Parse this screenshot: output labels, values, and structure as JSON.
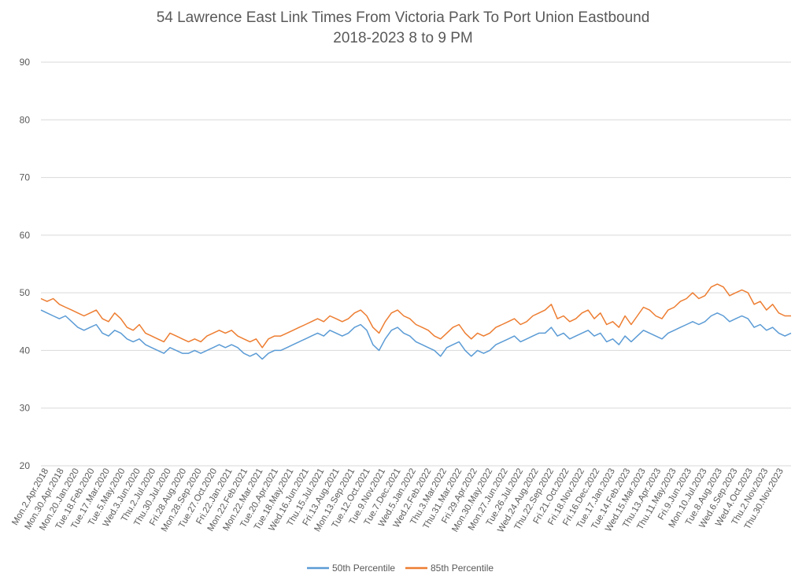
{
  "chart_data": {
    "type": "line",
    "title": "54 Lawrence East Link Times From Victoria Park To Port Union Eastbound",
    "subtitle": "2018-2023 8 to 9 PM",
    "xlabel": "",
    "ylabel": "",
    "ylim": [
      20,
      90
    ],
    "yticks": [
      20,
      30,
      40,
      50,
      60,
      70,
      80,
      90
    ],
    "grid": true,
    "legend_position": "bottom",
    "x_tick_labels": [
      "Mon.2.Apr.2018",
      "Mon.30.Apr.2018",
      "Mon.20.Jan.2020",
      "Tue.18.Feb.2020",
      "Tue.17.Mar.2020",
      "Tue.5.May.2020",
      "Wed.3.Jun.2020",
      "Thu.2.Jul.2020",
      "Thu.30.Jul.2020",
      "Fri.28.Aug.2020",
      "Mon.28.Sep.2020",
      "Tue.27.Oct.2020",
      "Fri.22.Jan.2021",
      "Mon.22.Feb.2021",
      "Mon.22.Mar.2021",
      "Tue.20.Apr.2021",
      "Tue.18.May.2021",
      "Wed.16.Jun.2021",
      "Thu.15.Jul.2021",
      "Fri.13.Aug.2021",
      "Mon.13.Sep.2021",
      "Tue.12.Oct.2021",
      "Tue.9.Nov.2021",
      "Tue.7.Dec.2021",
      "Wed.5.Jan.2022",
      "Wed.2.Feb.2022",
      "Thu.3.Mar.2022",
      "Thu.31.Mar.2022",
      "Fri.29.Apr.2022",
      "Mon.30.May.2022",
      "Mon.27.Jun.2022",
      "Tue.26.Jul.2022",
      "Wed.24.Aug.2022",
      "Thu.22.Sep.2022",
      "Fri.21.Oct.2022",
      "Fri.18.Nov.2022",
      "Fri.16.Dec.2022",
      "Tue.17.Jan.2023",
      "Tue.14.Feb.2023",
      "Wed.15.Mar.2023",
      "Thu.13.Apr.2023",
      "Thu.11.May.2023",
      "Fri.9.Jun.2023",
      "Mon.10.Jul.2023",
      "Tue.8.Aug.2023",
      "Wed.6.Sep.2023",
      "Wed.4.Oct.2023",
      "Thu.2.Nov.2023",
      "Thu.30.Nov.2023"
    ],
    "series": [
      {
        "name": "50th Percentile",
        "color": "#5b9bd5",
        "values": [
          47,
          46.5,
          46,
          45.5,
          46,
          45,
          44,
          43.5,
          44,
          44.5,
          43,
          42.5,
          43.5,
          43,
          42,
          41.5,
          42,
          41,
          40.5,
          40,
          39.5,
          40.5,
          40,
          39.5,
          39.5,
          40,
          39.5,
          40,
          40.5,
          41,
          40.5,
          41,
          40.5,
          39.5,
          39,
          39.5,
          38.5,
          39.5,
          40,
          40,
          40.5,
          41,
          41.5,
          42,
          42.5,
          43,
          42.5,
          43.5,
          43,
          42.5,
          43,
          44,
          44.5,
          43.5,
          41,
          40,
          42,
          43.5,
          44,
          43,
          42.5,
          41.5,
          41,
          40.5,
          40,
          39,
          40.5,
          41,
          41.5,
          40,
          39,
          40,
          39.5,
          40,
          41,
          41.5,
          42,
          42.5,
          41.5,
          42,
          42.5,
          43,
          43,
          44,
          42.5,
          43,
          42,
          42.5,
          43,
          43.5,
          42.5,
          43,
          41.5,
          42,
          41,
          42.5,
          41.5,
          42.5,
          43.5,
          43,
          42.5,
          42,
          43,
          43.5,
          44,
          44.5,
          45,
          44.5,
          45,
          46,
          46.5,
          46,
          45,
          45.5,
          46,
          45.5,
          44,
          44.5,
          43.5,
          44,
          43,
          42.5,
          43
        ],
        "spikes": []
      },
      {
        "name": "85th Percentile",
        "color": "#ed7d31",
        "values": [
          49,
          48.5,
          49,
          48,
          47.5,
          47,
          46.5,
          46,
          46.5,
          47,
          45.5,
          45,
          46.5,
          45.5,
          44,
          43.5,
          44.5,
          43,
          42.5,
          42,
          41.5,
          43,
          42.5,
          42,
          41.5,
          42,
          41.5,
          42.5,
          43,
          43.5,
          43,
          43.5,
          42.5,
          42,
          41.5,
          42,
          40.5,
          42,
          42.5,
          42.5,
          43,
          43.5,
          44,
          44.5,
          45,
          45.5,
          45,
          46,
          45.5,
          45,
          45.5,
          46.5,
          47,
          46,
          44,
          43,
          45,
          46.5,
          47,
          46,
          45.5,
          44.5,
          44,
          43.5,
          42.5,
          42,
          43,
          44,
          44.5,
          43,
          42,
          43,
          42.5,
          43,
          44,
          44.5,
          45,
          45.5,
          44.5,
          45,
          46,
          46.5,
          47,
          48,
          45.5,
          46,
          45,
          45.5,
          46.5,
          47,
          45.5,
          46.5,
          44.5,
          45,
          44,
          46,
          44.5,
          46,
          47.5,
          47,
          46,
          45.5,
          47,
          47.5,
          48.5,
          49,
          50,
          49,
          49.5,
          51,
          51.5,
          51,
          49.5,
          50,
          50.5,
          50,
          48,
          48.5,
          47,
          48,
          46.5,
          46,
          46
        ],
        "spikes": []
      }
    ]
  }
}
